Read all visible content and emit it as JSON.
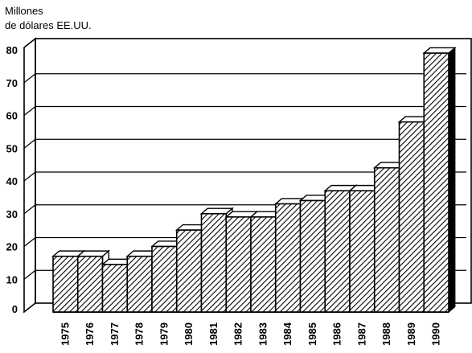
{
  "chart_data": {
    "type": "bar",
    "title": "",
    "ylabel_lines": [
      "Millones",
      "de dólares EE.UU."
    ],
    "xlabel": "",
    "categories": [
      "1975",
      "1976",
      "1977",
      "1978",
      "1979",
      "1980",
      "1981",
      "1982",
      "1983",
      "1984",
      "1985",
      "1986",
      "1987",
      "1988",
      "1989",
      "1990"
    ],
    "values": [
      17,
      17,
      14.5,
      17,
      20,
      25,
      30,
      29,
      29,
      33,
      34,
      37,
      37,
      44,
      58,
      79
    ],
    "ylim": [
      0,
      80
    ],
    "yticks": [
      "80",
      "70",
      "60",
      "50",
      "40",
      "30",
      "20",
      "10",
      "0"
    ],
    "grid": true,
    "style": "3d-hatched-bars"
  }
}
